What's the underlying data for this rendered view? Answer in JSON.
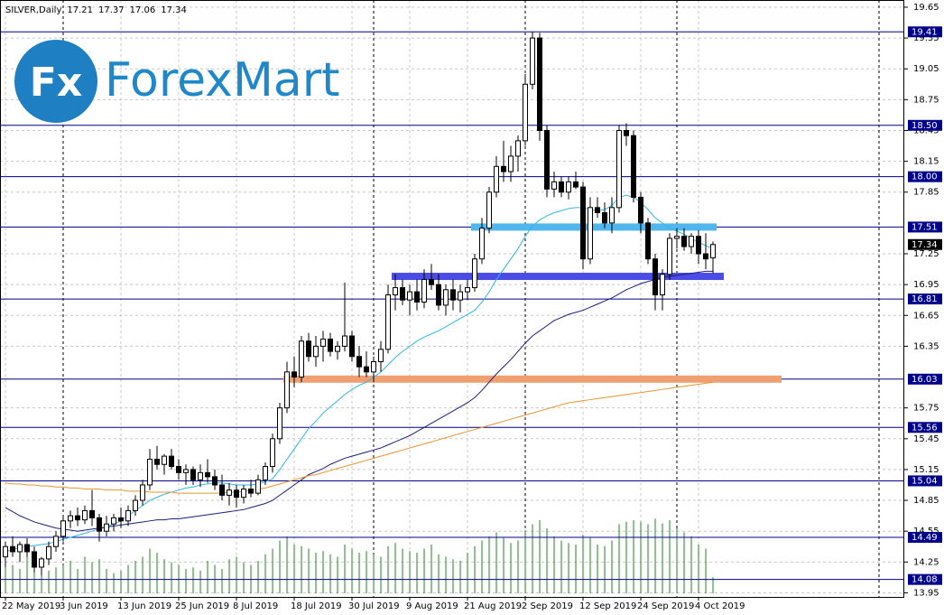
{
  "logo": {
    "icon": "Fx",
    "text": "ForexMart"
  },
  "chart_data": {
    "type": "candlestick",
    "title": "SILVER,Daily",
    "categories": [
      "22 May 2019",
      null,
      null,
      null,
      null,
      null,
      null,
      null,
      "3 Jun 2019",
      null,
      null,
      null,
      null,
      null,
      null,
      null,
      "13 Jun 2019",
      null,
      null,
      null,
      null,
      null,
      null,
      null,
      "25 Jun 2019",
      null,
      null,
      null,
      null,
      null,
      null,
      null,
      "8 Jul 2019",
      null,
      null,
      null,
      null,
      null,
      null,
      null,
      "18 Jul 2019",
      null,
      null,
      null,
      null,
      null,
      null,
      null,
      "30 Jul 2019",
      null,
      null,
      null,
      null,
      null,
      null,
      null,
      "9 Aug 2019",
      null,
      null,
      null,
      null,
      null,
      null,
      null,
      "21 Aug 2019",
      null,
      null,
      null,
      null,
      null,
      null,
      null,
      "2 Sep 2019",
      null,
      null,
      null,
      null,
      null,
      null,
      null,
      "12 Sep 2019",
      null,
      null,
      null,
      null,
      null,
      null,
      null,
      "24 Sep 2019",
      null,
      null,
      null,
      null,
      null,
      null,
      null,
      "4 Oct 2019",
      null,
      null
    ],
    "open": [
      14.3,
      14.4,
      14.35,
      14.42,
      14.35,
      14.2,
      14.28,
      14.4,
      14.5,
      14.65,
      14.7,
      14.66,
      14.75,
      14.68,
      14.55,
      14.62,
      14.68,
      14.65,
      14.75,
      14.85,
      15.0,
      15.25,
      15.2,
      15.28,
      15.18,
      15.12,
      15.15,
      15.05,
      15.12,
      15.08,
      15.0,
      14.9,
      14.95,
      14.88,
      14.96,
      14.92,
      15.05,
      15.18,
      15.45,
      15.75,
      16.1,
      16.05,
      16.4,
      16.25,
      16.35,
      16.42,
      16.3,
      16.35,
      16.45,
      16.25,
      16.15,
      16.1,
      16.2,
      16.32,
      16.85,
      16.92,
      16.8,
      16.88,
      16.78,
      17.0,
      16.95,
      16.75,
      16.9,
      16.8,
      16.88,
      16.92,
      17.2,
      17.5,
      17.85,
      18.1,
      18.05,
      18.2,
      18.35,
      18.9,
      19.35,
      18.45,
      17.88,
      17.95,
      17.85,
      17.95,
      17.9,
      17.2,
      17.7,
      17.65,
      17.55,
      17.7,
      18.45,
      18.4,
      17.8,
      17.55,
      17.2,
      16.85,
      17.05,
      17.4,
      17.42,
      17.32,
      17.42,
      17.25,
      17.21
    ],
    "high": [
      14.45,
      14.5,
      14.45,
      14.48,
      14.4,
      14.3,
      14.45,
      14.55,
      14.7,
      14.75,
      14.78,
      14.8,
      14.95,
      14.72,
      14.7,
      14.72,
      14.78,
      14.8,
      14.9,
      15.05,
      15.35,
      15.38,
      15.3,
      15.35,
      15.25,
      15.2,
      15.18,
      15.2,
      15.25,
      15.15,
      15.1,
      15.02,
      15.0,
      15.0,
      15.05,
      15.1,
      15.22,
      15.5,
      15.8,
      16.2,
      16.25,
      16.45,
      16.48,
      16.45,
      16.5,
      16.48,
      16.4,
      16.97,
      16.5,
      16.35,
      16.3,
      16.25,
      16.4,
      16.95,
      17.05,
      17.0,
      16.95,
      17.0,
      17.1,
      17.15,
      17.05,
      16.95,
      17.0,
      16.95,
      17.0,
      17.25,
      17.6,
      17.9,
      18.2,
      18.35,
      18.3,
      18.4,
      19.0,
      19.41,
      19.4,
      18.5,
      18.05,
      18.0,
      18.0,
      18.05,
      17.95,
      17.8,
      17.8,
      17.75,
      17.8,
      18.5,
      18.52,
      18.45,
      17.85,
      17.6,
      17.25,
      17.1,
      17.45,
      17.5,
      17.5,
      17.45,
      17.48,
      17.45,
      17.37
    ],
    "low": [
      14.2,
      14.3,
      14.25,
      14.3,
      14.15,
      14.12,
      14.22,
      14.35,
      14.45,
      14.58,
      14.6,
      14.62,
      14.6,
      14.45,
      14.5,
      14.55,
      14.58,
      14.6,
      14.7,
      14.8,
      14.95,
      15.15,
      15.1,
      15.15,
      15.05,
      15.0,
      15.0,
      14.98,
      15.02,
      14.95,
      14.85,
      14.8,
      14.78,
      14.82,
      14.88,
      14.9,
      15.0,
      15.12,
      15.4,
      15.7,
      15.95,
      16.0,
      16.2,
      16.15,
      16.2,
      16.25,
      16.22,
      16.3,
      16.2,
      16.05,
      16.05,
      16.0,
      16.1,
      16.28,
      16.7,
      16.75,
      16.65,
      16.7,
      16.72,
      16.9,
      16.7,
      16.65,
      16.7,
      16.68,
      16.8,
      16.88,
      17.15,
      17.45,
      17.8,
      17.95,
      17.95,
      18.05,
      18.3,
      18.85,
      18.35,
      17.8,
      17.8,
      17.8,
      17.78,
      17.88,
      17.1,
      17.15,
      17.6,
      17.5,
      17.45,
      17.65,
      18.3,
      17.75,
      17.45,
      17.15,
      16.7,
      16.7,
      17.0,
      17.3,
      17.28,
      17.25,
      17.15,
      17.1,
      17.06
    ],
    "close": [
      14.4,
      14.35,
      14.42,
      14.35,
      14.2,
      14.28,
      14.4,
      14.5,
      14.65,
      14.7,
      14.66,
      14.75,
      14.68,
      14.55,
      14.62,
      14.68,
      14.65,
      14.75,
      14.85,
      15.0,
      15.25,
      15.2,
      15.28,
      15.18,
      15.12,
      15.15,
      15.05,
      15.12,
      15.08,
      15.0,
      14.9,
      14.95,
      14.88,
      14.96,
      14.92,
      15.05,
      15.18,
      15.45,
      15.75,
      16.1,
      16.05,
      16.4,
      16.25,
      16.35,
      16.42,
      16.3,
      16.35,
      16.45,
      16.25,
      16.15,
      16.1,
      16.2,
      16.32,
      16.85,
      16.92,
      16.8,
      16.88,
      16.78,
      17.0,
      16.95,
      16.75,
      16.9,
      16.8,
      16.88,
      16.92,
      17.2,
      17.5,
      17.85,
      18.1,
      18.05,
      18.2,
      18.35,
      18.9,
      19.35,
      18.45,
      17.88,
      17.95,
      17.85,
      17.95,
      17.9,
      17.2,
      17.7,
      17.65,
      17.55,
      17.7,
      18.45,
      18.4,
      17.8,
      17.55,
      17.2,
      16.85,
      17.05,
      17.4,
      17.42,
      17.32,
      17.42,
      17.25,
      17.2,
      17.34
    ],
    "up_color": "#ffffff",
    "down_color": "#000000",
    "series": [
      {
        "color": "#30b8e8",
        "values": [
          14.35,
          14.37,
          14.39,
          14.4,
          14.41,
          14.42,
          14.43,
          14.45,
          14.47,
          14.49,
          14.51,
          14.53,
          14.55,
          14.57,
          14.59,
          14.62,
          14.65,
          14.7,
          14.75,
          14.8,
          14.85,
          14.88,
          14.91,
          14.93,
          14.95,
          14.97,
          14.98,
          15.0,
          15.01,
          15.02,
          15.02,
          15.01,
          15.0,
          15.0,
          15.0,
          15.01,
          15.03,
          15.06,
          15.15,
          15.25,
          15.35,
          15.45,
          15.55,
          15.62,
          15.7,
          15.76,
          15.82,
          15.88,
          15.93,
          15.97,
          16.0,
          16.05,
          16.1,
          16.17,
          16.24,
          16.3,
          16.35,
          16.4,
          16.44,
          16.47,
          16.5,
          16.54,
          16.58,
          16.62,
          16.66,
          16.7,
          16.78,
          16.88,
          17.0,
          17.1,
          17.2,
          17.3,
          17.42,
          17.52,
          17.58,
          17.62,
          17.65,
          17.67,
          17.69,
          17.7,
          17.7,
          17.68,
          17.67,
          17.68,
          17.72,
          17.8,
          17.82,
          17.8,
          17.75,
          17.68,
          17.6,
          17.55,
          17.5,
          17.47,
          17.44,
          17.4,
          17.36,
          17.33,
          17.3
        ]
      },
      {
        "color": "#1a1f7a",
        "values": [
          14.78,
          14.74,
          14.7,
          14.67,
          14.64,
          14.62,
          14.6,
          14.58,
          14.57,
          14.56,
          14.55,
          14.56,
          14.57,
          14.58,
          14.59,
          14.6,
          14.61,
          14.62,
          14.63,
          14.64,
          14.65,
          14.66,
          14.66,
          14.67,
          14.67,
          14.68,
          14.69,
          14.7,
          14.71,
          14.72,
          14.73,
          14.74,
          14.75,
          14.76,
          14.78,
          14.8,
          14.82,
          14.85,
          14.9,
          14.95,
          15.0,
          15.05,
          15.1,
          15.13,
          15.16,
          15.2,
          15.23,
          15.26,
          15.28,
          15.3,
          15.32,
          15.34,
          15.36,
          15.39,
          15.42,
          15.45,
          15.48,
          15.52,
          15.56,
          15.6,
          15.64,
          15.68,
          15.72,
          15.76,
          15.8,
          15.85,
          15.92,
          16.0,
          16.08,
          16.15,
          16.22,
          16.3,
          16.38,
          16.45,
          16.5,
          16.55,
          16.6,
          16.63,
          16.66,
          16.68,
          16.7,
          16.73,
          16.76,
          16.79,
          16.82,
          16.86,
          16.9,
          16.93,
          16.96,
          16.98,
          17.0,
          17.02,
          17.03,
          17.04,
          17.05,
          17.06,
          17.07,
          17.08,
          17.08
        ]
      },
      {
        "color": "#e8962e",
        "values": [
          15.02,
          15.01,
          15.01,
          15.0,
          15.0,
          14.99,
          14.99,
          14.98,
          14.98,
          14.97,
          14.97,
          14.96,
          14.96,
          14.96,
          14.95,
          14.95,
          14.95,
          14.94,
          14.94,
          14.94,
          14.93,
          14.93,
          14.93,
          14.93,
          14.92,
          14.92,
          14.92,
          14.92,
          14.92,
          14.92,
          14.92,
          14.93,
          14.93,
          14.94,
          14.95,
          14.96,
          14.97,
          14.99,
          15.01,
          15.03,
          15.05,
          15.07,
          15.09,
          15.1,
          15.12,
          15.14,
          15.16,
          15.18,
          15.2,
          15.22,
          15.24,
          15.26,
          15.28,
          15.3,
          15.32,
          15.34,
          15.36,
          15.38,
          15.4,
          15.42,
          15.44,
          15.46,
          15.48,
          15.5,
          15.52,
          15.54,
          15.56,
          15.58,
          15.6,
          15.62,
          15.64,
          15.66,
          15.68,
          15.7,
          15.72,
          15.74,
          15.76,
          15.78,
          15.8,
          15.81,
          15.82,
          15.83,
          15.84,
          15.85,
          15.86,
          15.87,
          15.88,
          15.89,
          15.9,
          15.91,
          15.92,
          15.93,
          15.94,
          15.95,
          15.96,
          15.97,
          15.98,
          15.99,
          16.0
        ]
      }
    ],
    "volume": [
      40,
      35,
      30,
      45,
      38,
      30,
      28,
      32,
      35,
      40,
      30,
      45,
      38,
      42,
      30,
      25,
      28,
      35,
      40,
      45,
      55,
      50,
      42,
      38,
      35,
      30,
      32,
      28,
      40,
      35,
      30,
      42,
      45,
      38,
      35,
      40,
      48,
      55,
      65,
      70,
      60,
      58,
      55,
      50,
      52,
      48,
      45,
      60,
      55,
      50,
      52,
      48,
      45,
      58,
      62,
      55,
      52,
      50,
      55,
      60,
      48,
      45,
      42,
      40,
      50,
      58,
      65,
      70,
      75,
      68,
      62,
      65,
      78,
      85,
      90,
      80,
      70,
      65,
      62,
      60,
      72,
      68,
      60,
      58,
      65,
      85,
      88,
      90,
      88,
      85,
      92,
      86,
      90,
      80,
      75,
      70,
      60,
      55,
      20
    ],
    "volume_color": "#1f8a1f",
    "levels": [
      19.41,
      {
        "value": 18.5,
        "label": "18.50"
      },
      {
        "value": 18,
        "label": "18.00"
      },
      17.51,
      16.81,
      16.03,
      15.56,
      15.04,
      14.49,
      14.08
    ],
    "level_color": "#00008b",
    "zones": [
      {
        "value": 17.51,
        "start": 65,
        "end": 99,
        "color": "#4fb6ee"
      },
      {
        "value": 17.03,
        "start": 54,
        "end": 100,
        "color": "#4b4be6"
      },
      {
        "value": 16.03,
        "start": 39,
        "end": 108,
        "color": "#f0a070"
      }
    ],
    "ylim": [
      13.91,
      19.72
    ],
    "yticks": [
      19.65,
      19.35,
      19.05,
      18.75,
      18.45,
      18.15,
      17.85,
      17.25,
      16.95,
      16.65,
      16.35,
      15.75,
      15.45,
      15.15,
      14.85,
      14.55,
      14.25,
      13.95
    ],
    "grid": true
  }
}
